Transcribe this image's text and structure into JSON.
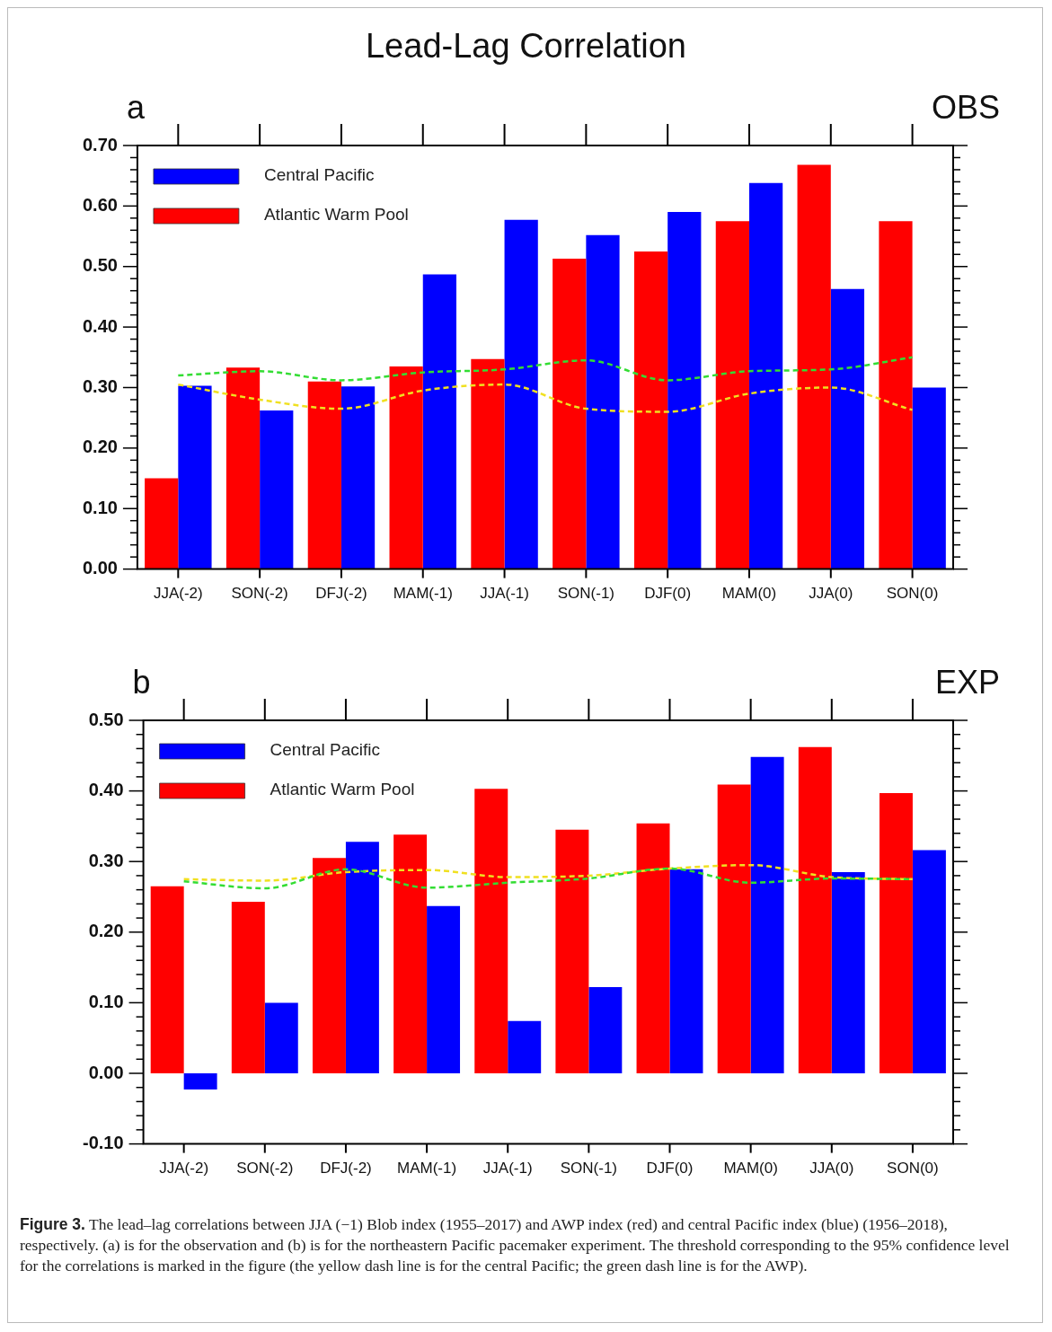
{
  "chart_data": [
    {
      "type": "bar",
      "title": "Lead-Lag Correlation",
      "annotations": [
        "a",
        "OBS"
      ],
      "categories": [
        "JJA(-2)",
        "SON(-2)",
        "DFJ(-2)",
        "MAM(-1)",
        "JJA(-1)",
        "SON(-1)",
        "DJF(0)",
        "MAM(0)",
        "JJA(0)",
        "SON(0)"
      ],
      "series": [
        {
          "name": "Atlantic Warm Pool",
          "color": "#ff0000",
          "values": [
            0.15,
            0.333,
            0.31,
            0.335,
            0.347,
            0.513,
            0.525,
            0.575,
            0.668,
            0.575
          ]
        },
        {
          "name": "Central Pacific",
          "color": "#0000ff",
          "values": [
            0.303,
            0.262,
            0.302,
            0.487,
            0.577,
            0.552,
            0.59,
            0.638,
            0.463,
            0.3
          ]
        },
        {
          "type": "line",
          "color": "#33dd33",
          "line_style": "dashed",
          "values": [
            0.32,
            0.327,
            0.312,
            0.325,
            0.33,
            0.345,
            0.312,
            0.327,
            0.33,
            0.35
          ]
        },
        {
          "type": "line",
          "color": "#f0e020",
          "line_style": "dashed",
          "values": [
            0.305,
            0.28,
            0.265,
            0.295,
            0.305,
            0.265,
            0.26,
            0.29,
            0.3,
            0.263
          ]
        }
      ],
      "ylim": [
        0,
        0.7
      ],
      "yticks": [
        {
          "value": 0,
          "label": "0.00"
        },
        {
          "value": 0.02,
          "label": null
        },
        {
          "value": 0.04,
          "label": null
        },
        {
          "value": 0.06,
          "label": null
        },
        {
          "value": 0.08,
          "label": null
        },
        {
          "value": 0.1,
          "label": "0.10"
        },
        {
          "value": 0.12,
          "label": null
        },
        {
          "value": 0.14,
          "label": null
        },
        {
          "value": 0.16,
          "label": null
        },
        {
          "value": 0.18,
          "label": null
        },
        {
          "value": 0.2,
          "label": "0.20"
        },
        {
          "value": 0.22,
          "label": null
        },
        {
          "value": 0.24,
          "label": null
        },
        {
          "value": 0.26,
          "label": null
        },
        {
          "value": 0.28,
          "label": null
        },
        {
          "value": 0.3,
          "label": "0.30"
        },
        {
          "value": 0.32,
          "label": null
        },
        {
          "value": 0.34,
          "label": null
        },
        {
          "value": 0.36,
          "label": null
        },
        {
          "value": 0.38,
          "label": null
        },
        {
          "value": 0.4,
          "label": "0.40"
        },
        {
          "value": 0.42,
          "label": null
        },
        {
          "value": 0.44,
          "label": null
        },
        {
          "value": 0.46,
          "label": null
        },
        {
          "value": 0.48,
          "label": null
        },
        {
          "value": 0.5,
          "label": "0.50"
        },
        {
          "value": 0.52,
          "label": null
        },
        {
          "value": 0.54,
          "label": null
        },
        {
          "value": 0.56,
          "label": null
        },
        {
          "value": 0.58,
          "label": null
        },
        {
          "value": 0.6,
          "label": "0.60"
        },
        {
          "value": 0.62,
          "label": null
        },
        {
          "value": 0.64,
          "label": null
        },
        {
          "value": 0.66,
          "label": null
        },
        {
          "value": 0.68,
          "label": null
        },
        {
          "value": 0.7,
          "label": "0.70"
        }
      ],
      "grid": false,
      "legend": "top left",
      "marker": "none"
    },
    {
      "type": "bar",
      "annotations": [
        "b",
        "EXP",
        "Figure 3.",
        "The lead–lag correlations between JJA (−1) Blob index (1955–2017) and AWP index (red) and central Pacific index (blue) (1956–2018), respectively. (a) is for the observation and (b) is for the northeastern Pacific pacemaker experiment. The threshold corresponding to the 95% confidence level for the correlations is marked in the figure (the yellow dash line is for the central Pacific; the green dash line is for the AWP)."
      ],
      "categories": [
        "JJA(-2)",
        "SON(-2)",
        "DFJ(-2)",
        "MAM(-1)",
        "JJA(-1)",
        "SON(-1)",
        "DJF(0)",
        "MAM(0)",
        "JJA(0)",
        "SON(0)"
      ],
      "series": [
        {
          "name": "Atlantic Warm Pool",
          "color": "#ff0000",
          "values": [
            0.265,
            0.243,
            0.305,
            0.338,
            0.403,
            0.345,
            0.354,
            0.409,
            0.462,
            0.397
          ]
        },
        {
          "name": "Central Pacific",
          "color": "#0000ff",
          "values": [
            -0.023,
            0.1,
            0.328,
            0.237,
            0.074,
            0.122,
            0.289,
            0.448,
            0.285,
            0.316
          ]
        },
        {
          "type": "line",
          "color": "#33dd33",
          "line_style": "dashed",
          "values": [
            0.272,
            0.262,
            0.289,
            0.263,
            0.27,
            0.276,
            0.29,
            0.27,
            0.276,
            0.275
          ]
        },
        {
          "type": "line",
          "color": "#f0e020",
          "line_style": "dashed",
          "values": [
            0.275,
            0.273,
            0.285,
            0.288,
            0.278,
            0.28,
            0.29,
            0.295,
            0.278,
            0.275
          ]
        }
      ],
      "ylim": [
        -0.1,
        0.5
      ],
      "yticks": [
        {
          "value": -0.1,
          "label": "-0.10"
        },
        {
          "value": -0.08,
          "label": null
        },
        {
          "value": -0.06,
          "label": null
        },
        {
          "value": -0.04,
          "label": null
        },
        {
          "value": -0.02,
          "label": null
        },
        {
          "value": 0,
          "label": "0.00"
        },
        {
          "value": 0.02,
          "label": null
        },
        {
          "value": 0.04,
          "label": null
        },
        {
          "value": 0.06,
          "label": null
        },
        {
          "value": 0.08,
          "label": null
        },
        {
          "value": 0.1,
          "label": "0.10"
        },
        {
          "value": 0.12,
          "label": null
        },
        {
          "value": 0.14,
          "label": null
        },
        {
          "value": 0.16,
          "label": null
        },
        {
          "value": 0.18,
          "label": null
        },
        {
          "value": 0.2,
          "label": "0.20"
        },
        {
          "value": 0.22,
          "label": null
        },
        {
          "value": 0.24,
          "label": null
        },
        {
          "value": 0.26,
          "label": null
        },
        {
          "value": 0.28,
          "label": null
        },
        {
          "value": 0.3,
          "label": "0.30"
        },
        {
          "value": 0.32,
          "label": null
        },
        {
          "value": 0.34,
          "label": null
        },
        {
          "value": 0.36,
          "label": null
        },
        {
          "value": 0.38,
          "label": null
        },
        {
          "value": 0.4,
          "label": "0.40"
        },
        {
          "value": 0.42,
          "label": null
        },
        {
          "value": 0.44,
          "label": null
        },
        {
          "value": 0.46,
          "label": null
        },
        {
          "value": 0.48,
          "label": null
        },
        {
          "value": 0.5,
          "label": "0.50"
        }
      ],
      "grid": false,
      "legend": "top left",
      "marker": "none"
    }
  ]
}
